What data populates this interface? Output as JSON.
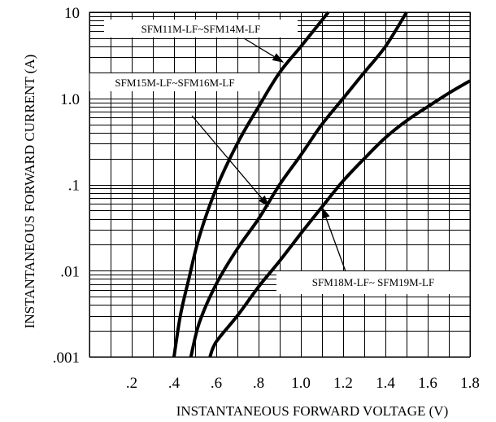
{
  "chart_data": {
    "type": "line",
    "xlabel": "INSTANTANEOUS FORWARD VOLTAGE (V)",
    "ylabel": "INSTANTANEOUS FORWARD CURRENT (A)",
    "xlim": [
      0,
      1.8
    ],
    "ylim": [
      0.001,
      10
    ],
    "yscale": "log",
    "grid": true,
    "xticks": [
      {
        "value": 0.2,
        "label": ".2"
      },
      {
        "value": 0.4,
        "label": ".4"
      },
      {
        "value": 0.6,
        "label": ".6"
      },
      {
        "value": 0.8,
        "label": ".8"
      },
      {
        "value": 1.0,
        "label": "1.0"
      },
      {
        "value": 1.2,
        "label": "1.2"
      },
      {
        "value": 1.4,
        "label": "1.4"
      },
      {
        "value": 1.6,
        "label": "1.6"
      },
      {
        "value": 1.8,
        "label": "1.8"
      }
    ],
    "yticks": [
      {
        "value": 0.001,
        "label": ".001"
      },
      {
        "value": 0.01,
        "label": ".01"
      },
      {
        "value": 0.1,
        "label": ".1"
      },
      {
        "value": 1,
        "label": "1.0"
      },
      {
        "value": 10,
        "label": "10"
      }
    ],
    "series": [
      {
        "name": "SFM11M-LF~SFM14M-LF",
        "points": [
          [
            0.4,
            0.001
          ],
          [
            0.43,
            0.003
          ],
          [
            0.47,
            0.008
          ],
          [
            0.52,
            0.025
          ],
          [
            0.6,
            0.09
          ],
          [
            0.7,
            0.3
          ],
          [
            0.8,
            0.8
          ],
          [
            0.9,
            2.0
          ],
          [
            1.0,
            4.0
          ],
          [
            1.13,
            10.0
          ]
        ]
      },
      {
        "name": "SFM15M-LF~SFM16M-LF",
        "points": [
          [
            0.48,
            0.001
          ],
          [
            0.52,
            0.0025
          ],
          [
            0.6,
            0.007
          ],
          [
            0.7,
            0.018
          ],
          [
            0.8,
            0.04
          ],
          [
            0.9,
            0.1
          ],
          [
            1.0,
            0.22
          ],
          [
            1.1,
            0.5
          ],
          [
            1.2,
            1.0
          ],
          [
            1.3,
            2.0
          ],
          [
            1.4,
            4.0
          ],
          [
            1.5,
            10.0
          ]
        ]
      },
      {
        "name": "SFM18M-LF~ SFM19M-LF",
        "points": [
          [
            0.57,
            0.001
          ],
          [
            0.6,
            0.0015
          ],
          [
            0.7,
            0.003
          ],
          [
            0.8,
            0.0065
          ],
          [
            0.9,
            0.013
          ],
          [
            1.0,
            0.027
          ],
          [
            1.1,
            0.055
          ],
          [
            1.2,
            0.11
          ],
          [
            1.3,
            0.2
          ],
          [
            1.4,
            0.35
          ],
          [
            1.5,
            0.55
          ],
          [
            1.6,
            0.8
          ],
          [
            1.7,
            1.15
          ],
          [
            1.8,
            1.6
          ]
        ]
      }
    ],
    "annotations": [
      {
        "text": "SFM11M-LF~SFM14M-LF",
        "series": 0,
        "arrow_to": {
          "x": 0.92,
          "y": 2.6
        }
      },
      {
        "text": "SFM15M-LF~SFM16M-LF",
        "series": 1,
        "arrow_to": {
          "x": 0.85,
          "y": 0.055
        }
      },
      {
        "text": "SFM18M-LF~ SFM19M-LF",
        "series": 2,
        "arrow_to": {
          "x": 1.1,
          "y": 0.055
        }
      }
    ]
  }
}
